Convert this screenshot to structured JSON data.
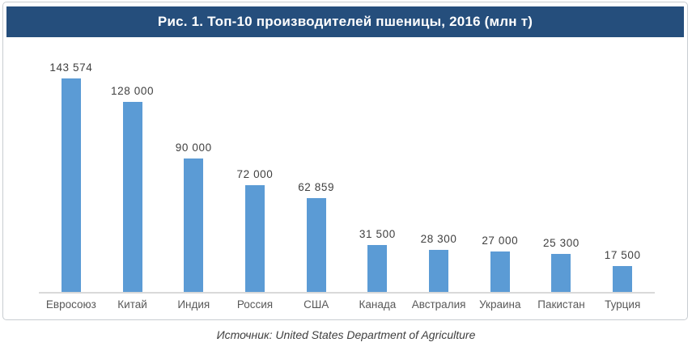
{
  "header": {
    "title": "Рис. 1. Топ-10 производителей пшеницы, 2016 (млн т)",
    "background_color": "#254e7c",
    "text_color": "#ffffff"
  },
  "footer": {
    "source": "Источник: United States Department of Agriculture"
  },
  "chart_data": {
    "type": "bar",
    "title": "Рис. 1. Топ-10 производителей пшеницы, 2016 (млн т)",
    "categories": [
      "Евросоюз",
      "Китай",
      "Индия",
      "Россия",
      "США",
      "Канада",
      "Австралия",
      "Украина",
      "Пакистан",
      "Турция"
    ],
    "values": [
      143574,
      128000,
      90000,
      72000,
      62859,
      31500,
      28300,
      27000,
      25300,
      17500
    ],
    "value_labels": [
      "143 574",
      "128 000",
      "90 000",
      "72 000",
      "62 859",
      "31 500",
      "28 300",
      "27 000",
      "25 300",
      "17 500"
    ],
    "xlabel": "",
    "ylabel": "",
    "ylim": [
      0,
      150000
    ],
    "grid": false,
    "legend": "none",
    "data_labels": "above-bars",
    "bar_color": "#5b9bd5",
    "axis_line_color": "#d9d9d9",
    "label_color": "#404040",
    "category_color": "#595959"
  }
}
